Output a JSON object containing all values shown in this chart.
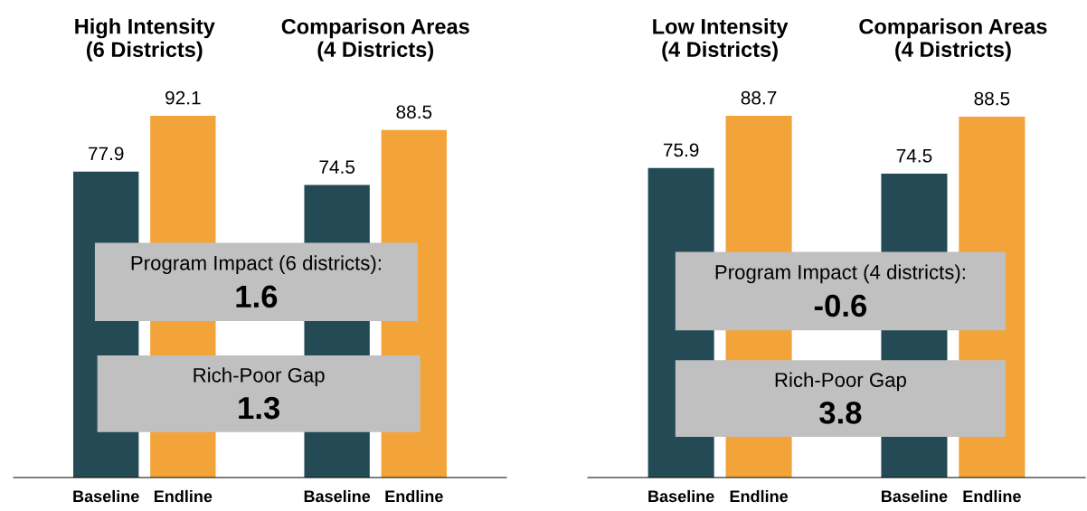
{
  "chart_data": [
    {
      "type": "bar",
      "categories": [
        "Baseline",
        "Endline",
        null,
        "Baseline",
        "Endline"
      ],
      "values": [
        77.9,
        92.1,
        null,
        74.5,
        88.5
      ],
      "colors": [
        "#244b55",
        "#f2a33a",
        null,
        "#244b55",
        "#f2a33a"
      ],
      "data_labels": true,
      "grid": false,
      "legend": false,
      "tick_labels": "x",
      "annotations": [
        "High Intensity\n(6 Districts)",
        "Comparison Areas\n(4 Districts)",
        "Program Impact (6 districts):",
        "1.6",
        "Rich-Poor Gap",
        "1.3"
      ]
    },
    {
      "type": "bar",
      "categories": [
        "Baseline",
        "Endline",
        null,
        "Baseline",
        "Endline"
      ],
      "values": [
        75.9,
        88.7,
        null,
        74.5,
        88.5
      ],
      "colors": [
        "#244b55",
        "#f2a33a",
        null,
        "#244b55",
        "#f2a33a"
      ],
      "data_labels": true,
      "grid": false,
      "legend": false,
      "tick_labels": "x",
      "annotations": [
        "Low Intensity\n(4 Districts)",
        "Comparison Areas\n(4 Districts)",
        "Program Impact (4 districts):",
        "-0.6",
        "Rich-Poor Gap",
        "3.8"
      ]
    }
  ]
}
